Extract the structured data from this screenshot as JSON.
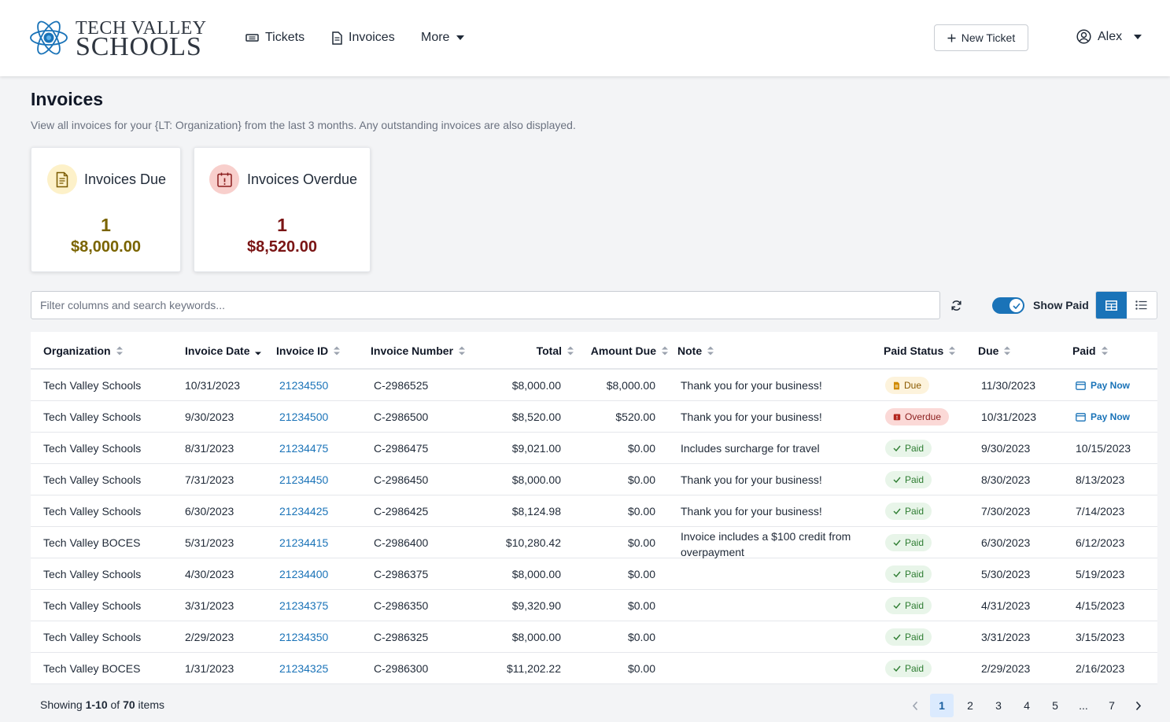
{
  "header": {
    "logo_line1": "TECH VALLEY",
    "logo_line2": "SCHOOLS",
    "nav": [
      {
        "label": "Tickets",
        "icon": "ticket-icon"
      },
      {
        "label": "Invoices",
        "icon": "document-icon"
      },
      {
        "label": "More",
        "icon": "chevron-down-icon"
      }
    ],
    "new_ticket_label": "New Ticket",
    "user_name": "Alex"
  },
  "page": {
    "title": "Invoices",
    "description": "View all invoices for your {LT: Organization} from the last 3 months. Any outstanding invoices are also displayed."
  },
  "cards": [
    {
      "title": "Invoices Due",
      "count": "1",
      "amount": "$8,000.00",
      "color": "#7a6400",
      "icon": "invoice-document-icon"
    },
    {
      "title": "Invoices Overdue",
      "count": "1",
      "amount": "$8,520.00",
      "color": "#7a1414",
      "icon": "calendar-alert-icon"
    }
  ],
  "toolbar": {
    "search_placeholder": "Filter columns and search keywords...",
    "show_paid_label": "Show Paid",
    "show_paid": true
  },
  "table": {
    "columns": [
      "Organization",
      "Invoice Date",
      "Invoice ID",
      "Invoice Number",
      "Total",
      "Amount Due",
      "Note",
      "Paid Status",
      "Due",
      "Paid"
    ],
    "rows": [
      {
        "org": "Tech Valley Schools",
        "date": "10/31/2023",
        "id": "21234550",
        "number": "C-2986525",
        "total": "$8,000.00",
        "amount_due": "$8,000.00",
        "note": "Thank you for your business!",
        "status": "Due",
        "due": "11/30/2023",
        "paid": "Pay Now"
      },
      {
        "org": "Tech Valley Schools",
        "date": "9/30/2023",
        "id": "21234500",
        "number": "C-2986500",
        "total": "$8,520.00",
        "amount_due": "$520.00",
        "note": "Thank you for your business!",
        "status": "Overdue",
        "due": "10/31/2023",
        "paid": "Pay Now"
      },
      {
        "org": "Tech Valley Schools",
        "date": "8/31/2023",
        "id": "21234475",
        "number": "C-2986475",
        "total": "$9,021.00",
        "amount_due": "$0.00",
        "note": "Includes surcharge for travel",
        "status": "Paid",
        "due": "9/30/2023",
        "paid": "10/15/2023"
      },
      {
        "org": "Tech Valley Schools",
        "date": "7/31/2023",
        "id": "21234450",
        "number": "C-2986450",
        "total": "$8,000.00",
        "amount_due": "$0.00",
        "note": "Thank you for your business!",
        "status": "Paid",
        "due": "8/30/2023",
        "paid": "8/13/2023"
      },
      {
        "org": "Tech Valley Schools",
        "date": "6/30/2023",
        "id": "21234425",
        "number": "C-2986425",
        "total": "$8,124.98",
        "amount_due": "$0.00",
        "note": "Thank you for your business!",
        "status": "Paid",
        "due": "7/30/2023",
        "paid": "7/14/2023"
      },
      {
        "org": "Tech Valley BOCES",
        "date": "5/31/2023",
        "id": "21234415",
        "number": "C-2986400",
        "total": "$10,280.42",
        "amount_due": "$0.00",
        "note": "Invoice includes a $100 credit from overpayment",
        "status": "Paid",
        "due": "6/30/2023",
        "paid": "6/12/2023"
      },
      {
        "org": "Tech Valley Schools",
        "date": "4/30/2023",
        "id": "21234400",
        "number": "C-2986375",
        "total": "$8,000.00",
        "amount_due": "$0.00",
        "note": "",
        "status": "Paid",
        "due": "5/30/2023",
        "paid": "5/19/2023"
      },
      {
        "org": "Tech Valley Schools",
        "date": "3/31/2023",
        "id": "21234375",
        "number": "C-2986350",
        "total": "$9,320.90",
        "amount_due": "$0.00",
        "note": "",
        "status": "Paid",
        "due": "4/31/2023",
        "paid": "4/15/2023"
      },
      {
        "org": "Tech Valley Schools",
        "date": "2/29/2023",
        "id": "21234350",
        "number": "C-2986325",
        "total": "$8,000.00",
        "amount_due": "$0.00",
        "note": "",
        "status": "Paid",
        "due": "3/31/2023",
        "paid": "3/15/2023"
      },
      {
        "org": "Tech Valley BOCES",
        "date": "1/31/2023",
        "id": "21234325",
        "number": "C-2986300",
        "total": "$11,202.22",
        "amount_due": "$0.00",
        "note": "",
        "status": "Paid",
        "due": "2/29/2023",
        "paid": "2/16/2023"
      }
    ]
  },
  "footer": {
    "showing_prefix": "Showing ",
    "showing_range": "1-10",
    "showing_of": " of ",
    "showing_total": "70",
    "showing_suffix": " items",
    "pages": [
      "1",
      "2",
      "3",
      "4",
      "5",
      "...",
      "7"
    ],
    "current_page": "1"
  },
  "colors": {
    "accent": "#1a73b8",
    "paid_bg": "#e8f5e9",
    "due_bg": "#fdf3dc",
    "overdue_bg": "#fbd9d7"
  }
}
